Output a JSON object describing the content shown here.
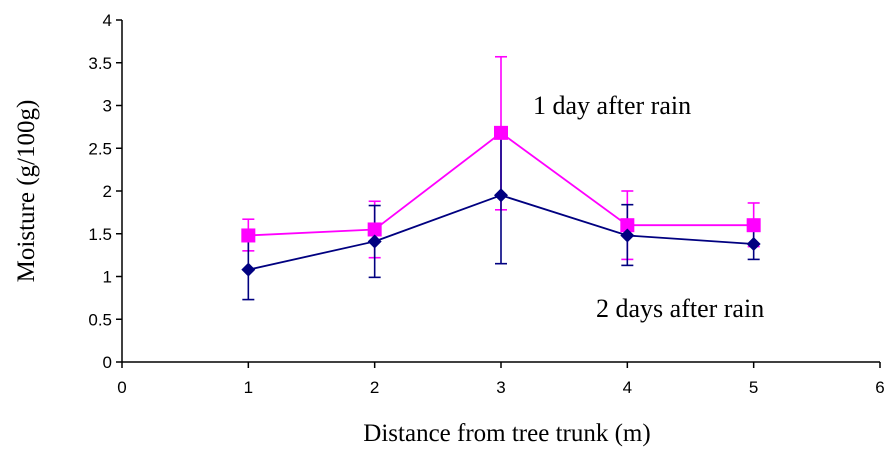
{
  "chart_data": {
    "type": "line",
    "title": "",
    "xlabel": "Distance from tree trunk (m)",
    "ylabel": "Moisture (g/100g)",
    "xlim": [
      0,
      6
    ],
    "ylim": [
      0,
      4
    ],
    "x_ticks": [
      "0",
      "1",
      "2",
      "3",
      "4",
      "5",
      "6"
    ],
    "y_ticks": [
      "0",
      "0.5",
      "1",
      "1.5",
      "2",
      "2.5",
      "3",
      "3.5",
      "4"
    ],
    "grid": false,
    "legend": "none",
    "series": [
      {
        "label_text": "1 day after rain",
        "color": "#ff00ff",
        "marker": "square",
        "x": [
          1,
          2,
          3,
          4,
          5
        ],
        "y": [
          1.48,
          1.55,
          2.68,
          1.6,
          1.6
        ],
        "err_low": [
          1.3,
          1.22,
          1.78,
          1.2,
          1.35
        ],
        "err_high": [
          1.67,
          1.88,
          3.57,
          2.0,
          1.86
        ]
      },
      {
        "label_text": "2 days after rain",
        "color": "#000080",
        "marker": "diamond",
        "x": [
          1,
          2,
          3,
          4,
          5
        ],
        "y": [
          1.08,
          1.41,
          1.95,
          1.48,
          1.38
        ],
        "err_low": [
          0.73,
          0.99,
          1.15,
          1.13,
          1.2
        ],
        "err_high": [
          1.43,
          1.83,
          2.75,
          1.84,
          1.56
        ]
      }
    ]
  }
}
